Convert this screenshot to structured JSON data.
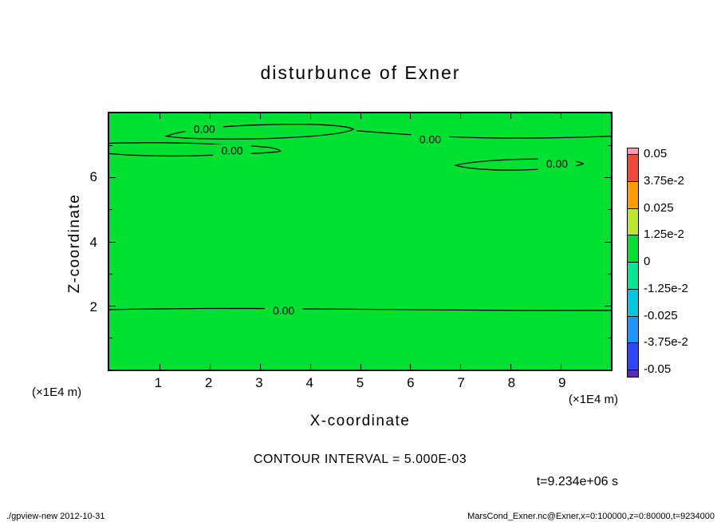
{
  "title": "disturbunce of Exner",
  "colors": {
    "background": "#ffffff",
    "frame": "#000000",
    "field_green": "#00e132"
  },
  "axes": {
    "x_label": "X-coordinate",
    "y_label": "Z-coordinate",
    "x_unit_left": "(×1E4 m)",
    "x_unit_right": "(×1E4 m)",
    "x_ticks": [
      "1",
      "2",
      "3",
      "4",
      "5",
      "6",
      "7",
      "8",
      "9"
    ],
    "z_ticks": [
      {
        "label": "6",
        "value": 6
      },
      {
        "label": "4",
        "value": 4
      },
      {
        "label": "2",
        "value": 2
      }
    ]
  },
  "colorbar": {
    "cap_top_color": "#ff96b4",
    "cap_bottom_color": "#5a28b9",
    "segment_colors": [
      "#f5463c",
      "#ff9c00",
      "#bee62d",
      "#00e132",
      "#00e693",
      "#00c8e1",
      "#1e96ff",
      "#2d46ff"
    ],
    "labels": [
      "0.05",
      "3.75e-2",
      "0.025",
      "1.25e-2",
      "0",
      "-1.25e-2",
      "-0.025",
      "-3.75e-2",
      "-0.05"
    ]
  },
  "contours": {
    "label_text": "0.00"
  },
  "captions": {
    "contour_interval": "CONTOUR INTERVAL = 5.000E-03",
    "time": "t=9.234e+06 s"
  },
  "footer": {
    "left": "./gpview-new  2012-10-31",
    "right": "MarsCond_Exner.nc@Exner,x=0:100000,z=0:80000,t=9234000"
  },
  "chart_data": {
    "type": "heatmap",
    "subtype": "filled-contour",
    "title": "disturbunce of Exner",
    "xlabel": "X-coordinate",
    "ylabel": "Z-coordinate",
    "axis_unit": "(×1E4 m)",
    "xlim_1e4_m": [
      0,
      10
    ],
    "zlim_1e4_m": [
      0,
      8
    ],
    "x_ticks": [
      1,
      2,
      3,
      4,
      5,
      6,
      7,
      8,
      9
    ],
    "z_ticks": [
      2,
      4,
      6
    ],
    "contour_interval": 0.005,
    "displayed_contour_level": 0.0,
    "colorbar_levels": [
      0.05,
      0.0375,
      0.025,
      0.0125,
      0,
      -0.0125,
      -0.025,
      -0.0375,
      -0.05
    ],
    "field_summary": "Exner function disturbance is approximately 0 over the whole domain (uniform green fill); 0.00 contour lines appear as thin wavy loops near z≈6.5–7.5e4 m and one horizontal 0.00 contour near z≈1.9e4 m spanning the full x range",
    "zero_contour_features": [
      {
        "shape": "closed loop",
        "x_range_1e4_m": [
          1.1,
          4.9
        ],
        "z_approx_1e4_m": 7.4
      },
      {
        "shape": "lens open at left edge",
        "x_range_1e4_m": [
          0.0,
          3.4
        ],
        "z_approx_1e4_m": 6.9
      },
      {
        "shape": "open line to right edge",
        "x_range_1e4_m": [
          4.9,
          10.0
        ],
        "z_approx_1e4_m": 7.3
      },
      {
        "shape": "closed loop",
        "x_range_1e4_m": [
          6.9,
          9.5
        ],
        "z_approx_1e4_m": 6.4
      },
      {
        "shape": "open line full width",
        "x_range_1e4_m": [
          0.0,
          10.0
        ],
        "z_approx_1e4_m": 1.9
      }
    ],
    "time": "t=9.234e+06 s"
  }
}
